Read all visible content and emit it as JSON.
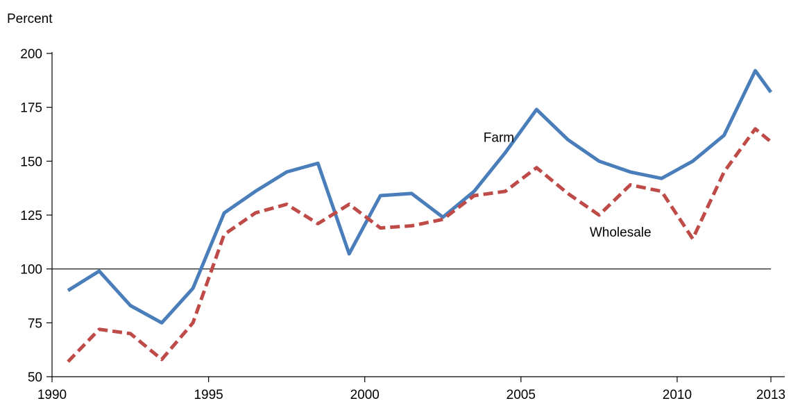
{
  "chart_data": {
    "type": "line",
    "title": "",
    "ylabel": "Percent",
    "xlabel": "",
    "xlim": [
      1990.5,
      2013
    ],
    "ylim": [
      50,
      200
    ],
    "x_ticks": [
      {
        "value": 1990.5,
        "label": "1990"
      },
      {
        "value": 1995,
        "label": "1995"
      },
      {
        "value": 2000,
        "label": "2000"
      },
      {
        "value": 2005,
        "label": "2005"
      },
      {
        "value": 2010,
        "label": "2010"
      },
      {
        "value": 2013,
        "label": "2013"
      }
    ],
    "y_ticks": [
      50,
      75,
      100,
      125,
      150,
      175,
      200
    ],
    "reference_line": 100,
    "grid": false,
    "legend": "inline labels",
    "x": [
      1990.5,
      1991.5,
      1992.5,
      1993.5,
      1994.5,
      1995.5,
      1996.5,
      1997.5,
      1998.5,
      1999.5,
      2000.5,
      2001.5,
      2002.5,
      2003.5,
      2004.5,
      2005.5,
      2006.5,
      2007.5,
      2008.5,
      2009.5,
      2010.5,
      2011.5,
      2012.5,
      2013
    ],
    "series": [
      {
        "name": "Farm",
        "color": "#4a7ebb",
        "style": "solid",
        "values": [
          90,
          99,
          83,
          75,
          91,
          126,
          136,
          145,
          149,
          107,
          134,
          135,
          124,
          136,
          154,
          174,
          160,
          150,
          145,
          142,
          150,
          162,
          192,
          182
        ]
      },
      {
        "name": "Wholesale",
        "color": "#be4b48",
        "style": "dashed",
        "values": [
          57,
          72,
          70,
          58,
          75,
          116,
          126,
          130,
          121,
          130,
          119,
          120,
          123,
          134,
          136,
          147,
          135,
          125,
          139,
          136,
          114,
          145,
          165,
          159
        ]
      }
    ],
    "annotations": [
      {
        "text": "Farm",
        "series": "Farm",
        "x": 2003.8,
        "y": 159
      },
      {
        "text": "Wholesale",
        "series": "Wholesale",
        "x": 2007.2,
        "y": 115
      }
    ]
  }
}
